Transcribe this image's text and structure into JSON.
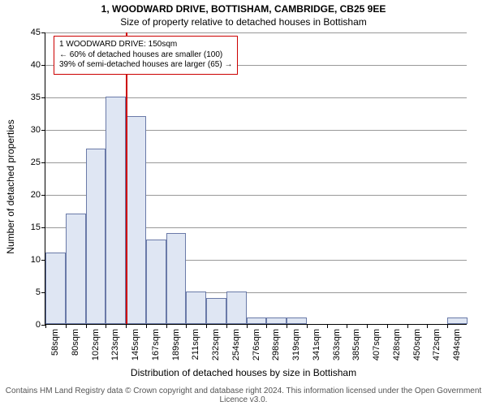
{
  "header": {
    "title": "1, WOODWARD DRIVE, BOTTISHAM, CAMBRIDGE, CB25 9EE",
    "subtitle": "Size of property relative to detached houses in Bottisham"
  },
  "axes": {
    "xlabel": "Distribution of detached houses by size in Bottisham",
    "ylabel": "Number of detached properties"
  },
  "chart": {
    "type": "histogram",
    "ylim": [
      0,
      45
    ],
    "ytick_step": 5,
    "grid_color": "#999999",
    "bar_fill": "#dfe6f3",
    "bar_stroke": "#6a7aa8",
    "bar_width_ratio": 1.0,
    "background_color": "#ffffff",
    "categories": [
      "58sqm",
      "80sqm",
      "102sqm",
      "123sqm",
      "145sqm",
      "167sqm",
      "189sqm",
      "211sqm",
      "232sqm",
      "254sqm",
      "276sqm",
      "298sqm",
      "319sqm",
      "341sqm",
      "363sqm",
      "385sqm",
      "407sqm",
      "428sqm",
      "450sqm",
      "472sqm",
      "494sqm"
    ],
    "values": [
      11,
      17,
      27,
      35,
      32,
      13,
      14,
      5,
      4,
      5,
      1,
      1,
      1,
      0,
      0,
      0,
      0,
      0,
      0,
      0,
      1
    ],
    "highlight": {
      "after_index": 4,
      "line_color": "#cc0000"
    }
  },
  "annotation": {
    "line1": "1 WOODWARD DRIVE: 150sqm",
    "line2": "← 60% of detached houses are smaller (100)",
    "line3": "39% of semi-detached houses are larger (65) →",
    "border_color": "#cc0000",
    "fontsize": 10
  },
  "credit": "Contains HM Land Registry data © Crown copyright and database right 2024. This information licensed under the Open Government Licence v3.0."
}
